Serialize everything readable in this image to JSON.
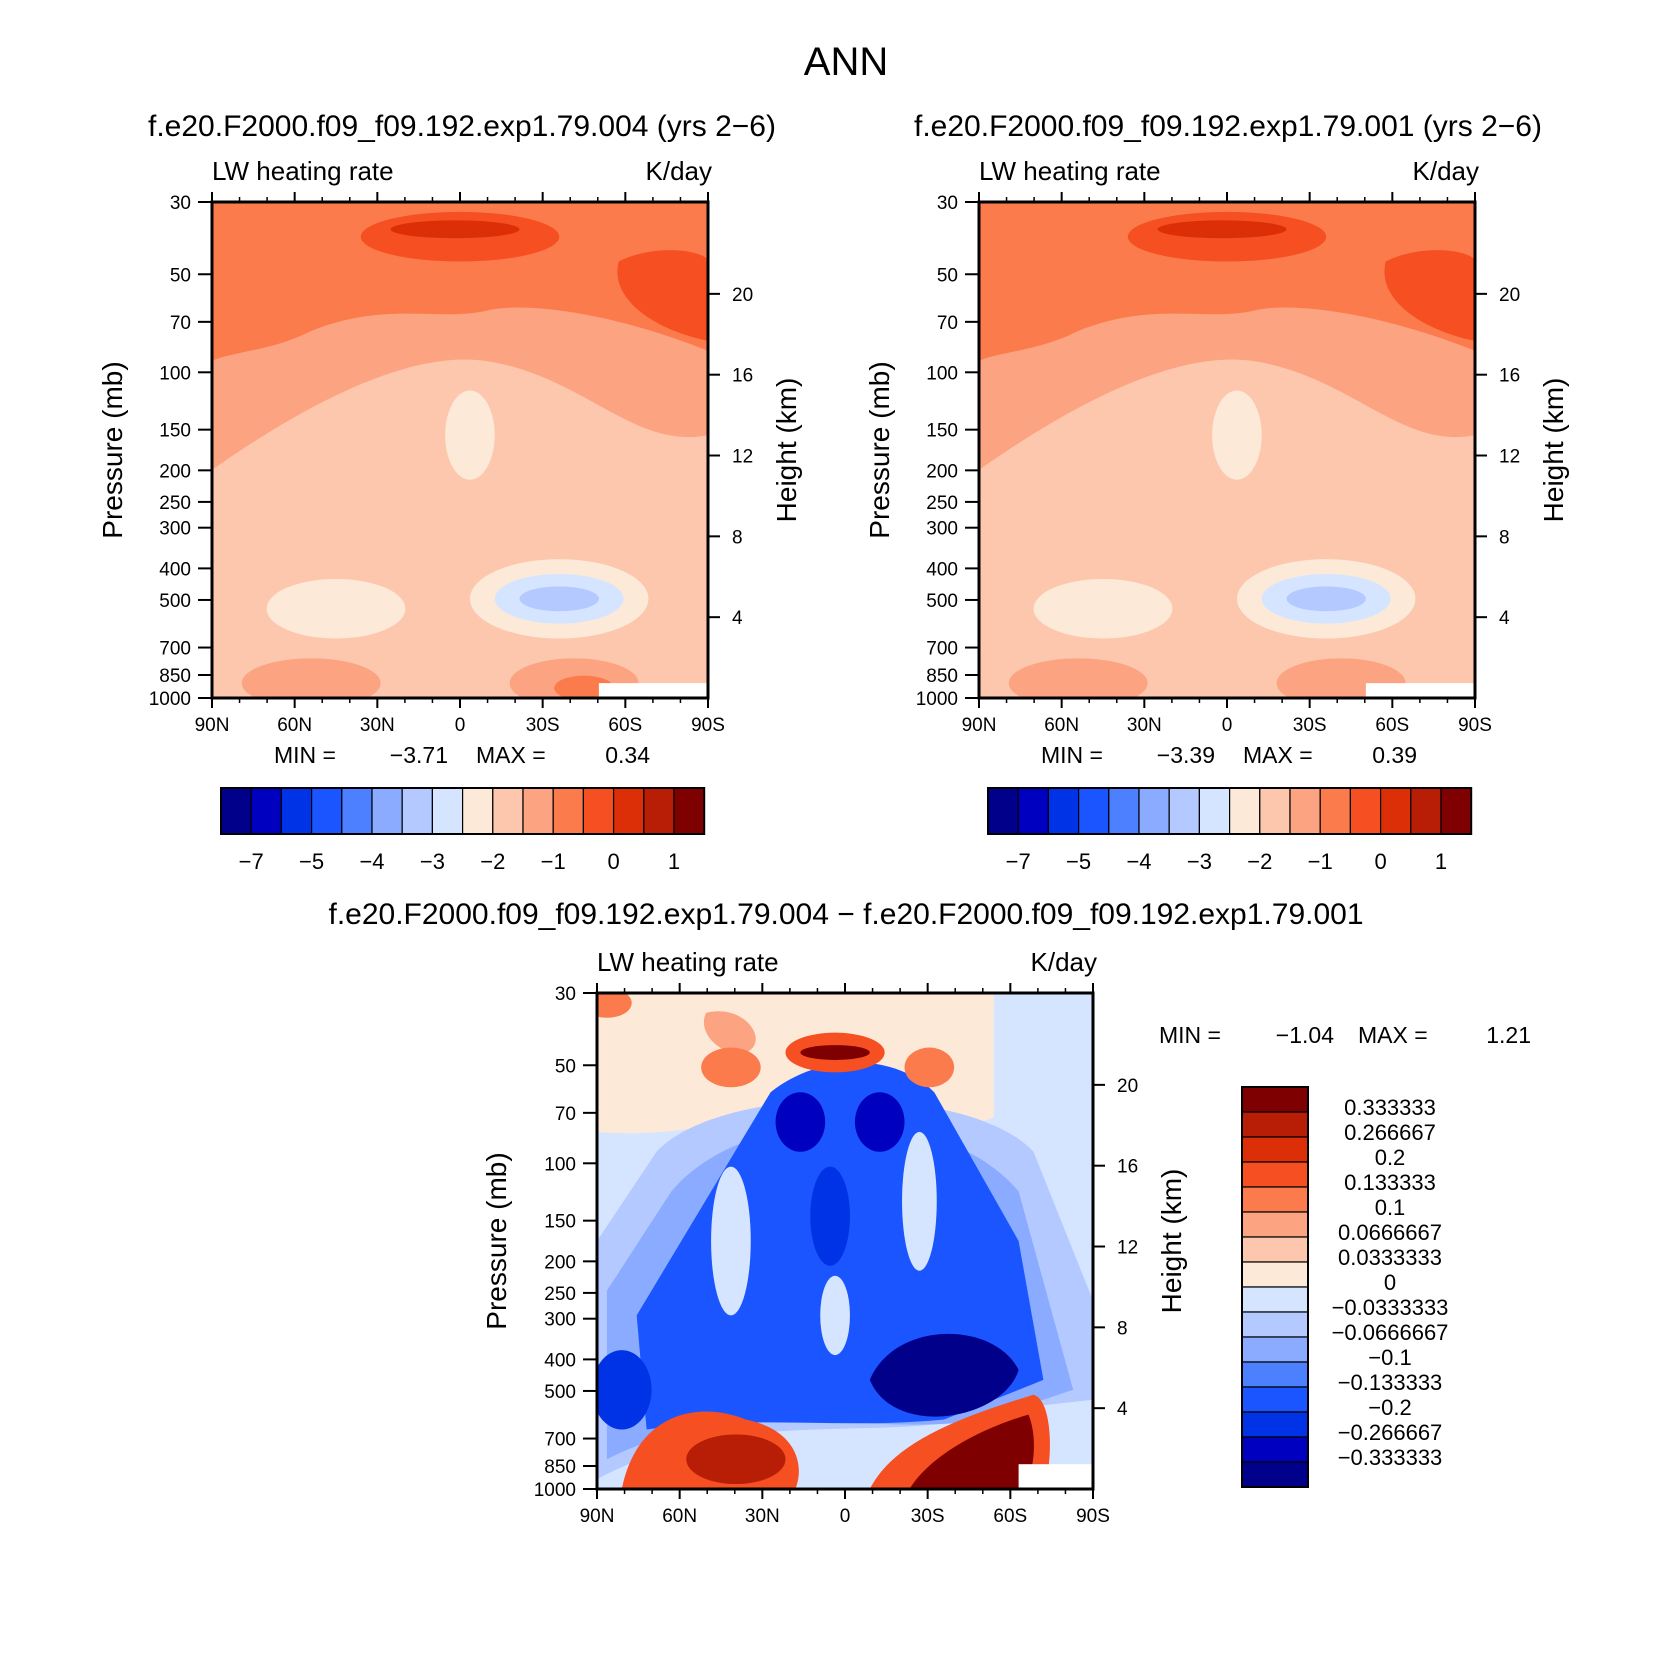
{
  "title": "ANN",
  "colors": {
    "abs_levels": [
      "#00008b",
      "#0000c0",
      "#0033e6",
      "#1a55ff",
      "#4d80ff",
      "#8aabff",
      "#b3c9ff",
      "#d6e5ff",
      "#fde9d8",
      "#fcc7ad",
      "#fca382",
      "#fb7b4c",
      "#f54f22",
      "#dc2f08",
      "#b81d06",
      "#7f0000"
    ],
    "diff_levels": [
      "#00008b",
      "#0000c0",
      "#0033e6",
      "#1a55ff",
      "#4d80ff",
      "#8aabff",
      "#b3c9ff",
      "#d6e5ff",
      "#fde9d8",
      "#fcc7ad",
      "#fca382",
      "#fb7b4c",
      "#f54f22",
      "#dc2f08",
      "#b81d06",
      "#7f0000"
    ]
  },
  "panels": [
    {
      "id": "left",
      "run_title": "f.e20.F2000.f09_f09.192.exp1.79.004 (yrs 2−6)",
      "var_label": "LW heating rate",
      "units_label": "K/day",
      "ylabel": "Pressure (mb)",
      "ylabel_right": "Height (km)",
      "min_label": "MIN =",
      "min_value": "−3.71",
      "max_label": "MAX =",
      "max_value": "0.34"
    },
    {
      "id": "right",
      "run_title": "f.e20.F2000.f09_f09.192.exp1.79.001 (yrs 2−6)",
      "var_label": "LW heating rate",
      "units_label": "K/day",
      "ylabel": "Pressure (mb)",
      "ylabel_right": "Height (km)",
      "min_label": "MIN =",
      "min_value": "−3.39",
      "max_label": "MAX =",
      "max_value": "0.39"
    },
    {
      "id": "diff",
      "run_title": "f.e20.F2000.f09_f09.192.exp1.79.004 − f.e20.F2000.f09_f09.192.exp1.79.001",
      "var_label": "LW heating rate",
      "units_label": "K/day",
      "ylabel": "Pressure (mb)",
      "ylabel_right": "Height (km)",
      "min_label": "MIN =",
      "min_value": "−1.04",
      "max_label": "MAX =",
      "max_value": "1.21"
    }
  ],
  "chart_data": [
    {
      "type": "heatmap",
      "panel": "left",
      "xlim": [
        "90N",
        "90S"
      ],
      "xticks": [
        "90N",
        "60N",
        "30N",
        "0",
        "30S",
        "60S",
        "90S"
      ],
      "ylim": [
        1000,
        30
      ],
      "yscale": "log",
      "yticks": [
        30,
        50,
        70,
        100,
        150,
        200,
        250,
        300,
        400,
        500,
        700,
        850,
        1000
      ],
      "yticks_right_km": [
        20,
        16,
        12,
        8,
        4
      ],
      "min": -3.71,
      "max": 0.34,
      "colorbar_ticks": [
        "−7",
        "−5",
        "−4",
        "−3",
        "−2",
        "−1",
        "0",
        "1"
      ]
    },
    {
      "type": "heatmap",
      "panel": "right",
      "xlim": [
        "90N",
        "90S"
      ],
      "xticks": [
        "90N",
        "60N",
        "30N",
        "0",
        "30S",
        "60S",
        "90S"
      ],
      "ylim": [
        1000,
        30
      ],
      "yscale": "log",
      "yticks": [
        30,
        50,
        70,
        100,
        150,
        200,
        250,
        300,
        400,
        500,
        700,
        850,
        1000
      ],
      "yticks_right_km": [
        20,
        16,
        12,
        8,
        4
      ],
      "min": -3.39,
      "max": 0.39,
      "colorbar_ticks": [
        "−7",
        "−5",
        "−4",
        "−3",
        "−2",
        "−1",
        "0",
        "1"
      ]
    },
    {
      "type": "heatmap",
      "panel": "diff",
      "xlim": [
        "90N",
        "90S"
      ],
      "xticks": [
        "90N",
        "60N",
        "30N",
        "0",
        "30S",
        "60S",
        "90S"
      ],
      "ylim": [
        1000,
        30
      ],
      "yscale": "log",
      "yticks": [
        30,
        50,
        70,
        100,
        150,
        200,
        250,
        300,
        400,
        500,
        700,
        850,
        1000
      ],
      "yticks_right_km": [
        20,
        16,
        12,
        8,
        4
      ],
      "min": -1.04,
      "max": 1.21,
      "colorbar_levels": [
        "0.333333",
        "0.266667",
        "0.2",
        "0.133333",
        "0.1",
        "0.0666667",
        "0.0333333",
        "0",
        "−0.0333333",
        "−0.0666667",
        "−0.1",
        "−0.133333",
        "−0.2",
        "−0.266667",
        "−0.333333"
      ]
    }
  ]
}
